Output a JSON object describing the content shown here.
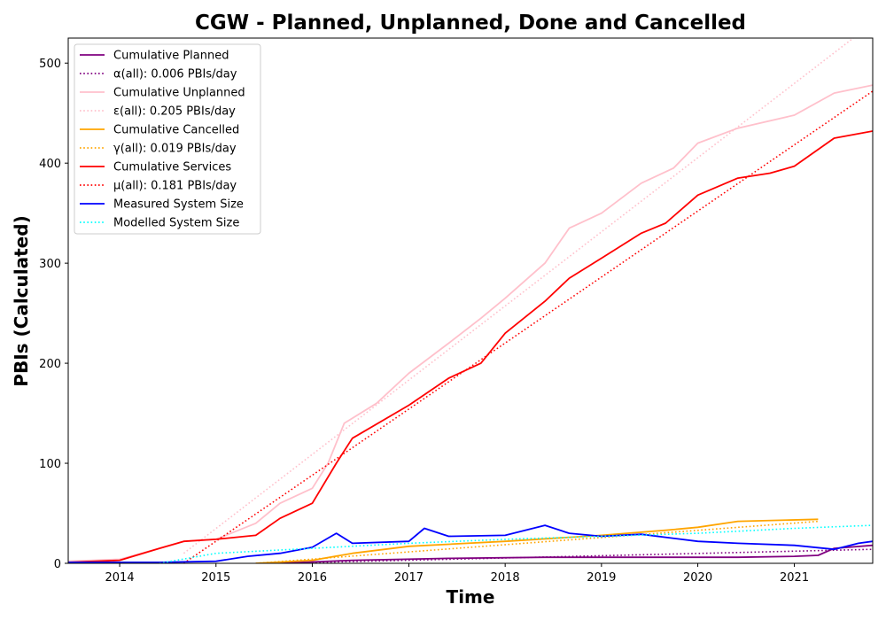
{
  "chart_data": {
    "type": "line",
    "title": "CGW - Planned, Unplanned, Done  and Cancelled",
    "xlabel": "Time",
    "ylabel": "PBIs (Calculated)",
    "xlim": [
      "2013-06-20",
      "2021-10-25"
    ],
    "ylim": [
      0,
      525
    ],
    "x_ticks": [
      "2014",
      "2015",
      "2016",
      "2017",
      "2018",
      "2019",
      "2020",
      "2021"
    ],
    "y_ticks": [
      0,
      100,
      200,
      300,
      400,
      500
    ],
    "legend_position": "upper-left",
    "grid": false,
    "series": [
      {
        "name": "Cumulative Planned",
        "color": "#800080",
        "style": "solid",
        "points": [
          [
            "2015-08-25",
            0
          ],
          [
            "2016-06-01",
            3
          ],
          [
            "2017-06-01",
            5
          ],
          [
            "2018-06-01",
            6
          ],
          [
            "2019-06-01",
            6
          ],
          [
            "2020-06-01",
            6
          ],
          [
            "2021-01-01",
            7
          ],
          [
            "2021-04-01",
            8
          ],
          [
            "2021-06-01",
            15
          ],
          [
            "2021-10-25",
            18
          ]
        ]
      },
      {
        "name": "α(all): 0.006 PBIs/day",
        "color": "#800080",
        "style": "dotted",
        "points": [
          [
            "2015-08-25",
            0
          ],
          [
            "2021-10-25",
            14
          ]
        ]
      },
      {
        "name": "Cumulative Unplanned",
        "color": "#ffc0cb",
        "style": "solid",
        "points": [
          [
            "2013-06-20",
            2
          ],
          [
            "2014-01-01",
            4
          ],
          [
            "2014-06-01",
            15
          ],
          [
            "2014-09-01",
            22
          ],
          [
            "2015-01-01",
            24
          ],
          [
            "2015-06-01",
            40
          ],
          [
            "2015-09-01",
            60
          ],
          [
            "2016-01-01",
            75
          ],
          [
            "2016-03-01",
            100
          ],
          [
            "2016-05-01",
            140
          ],
          [
            "2016-09-01",
            160
          ],
          [
            "2017-01-01",
            190
          ],
          [
            "2017-06-01",
            220
          ],
          [
            "2017-10-01",
            245
          ],
          [
            "2018-01-01",
            265
          ],
          [
            "2018-06-01",
            300
          ],
          [
            "2018-09-01",
            335
          ],
          [
            "2019-01-01",
            350
          ],
          [
            "2019-06-01",
            380
          ],
          [
            "2019-10-01",
            395
          ],
          [
            "2020-01-01",
            420
          ],
          [
            "2020-06-01",
            435
          ],
          [
            "2021-01-01",
            448
          ],
          [
            "2021-06-01",
            470
          ],
          [
            "2021-10-25",
            478
          ]
        ]
      },
      {
        "name": "ε(all): 0.205 PBIs/day",
        "color": "#ffc0cb",
        "style": "dotted",
        "points": [
          [
            "2014-09-01",
            10
          ],
          [
            "2021-10-25",
            540
          ]
        ]
      },
      {
        "name": "Cumulative Cancelled",
        "color": "#ffa500",
        "style": "solid",
        "points": [
          [
            "2015-06-01",
            0
          ],
          [
            "2016-01-01",
            3
          ],
          [
            "2016-06-01",
            10
          ],
          [
            "2017-01-01",
            17
          ],
          [
            "2018-01-01",
            22
          ],
          [
            "2019-01-01",
            28
          ],
          [
            "2019-09-01",
            33
          ],
          [
            "2020-01-01",
            36
          ],
          [
            "2020-06-01",
            42
          ],
          [
            "2021-04-01",
            44
          ]
        ]
      },
      {
        "name": "γ(all): 0.019 PBIs/day",
        "color": "#ffa500",
        "style": "dotted",
        "points": [
          [
            "2015-06-01",
            0
          ],
          [
            "2021-04-01",
            42
          ]
        ]
      },
      {
        "name": "Cumulative Services",
        "color": "#ff0000",
        "style": "solid",
        "points": [
          [
            "2013-06-20",
            1
          ],
          [
            "2014-01-01",
            3
          ],
          [
            "2014-06-01",
            15
          ],
          [
            "2014-09-01",
            22
          ],
          [
            "2015-01-01",
            24
          ],
          [
            "2015-06-01",
            28
          ],
          [
            "2015-09-01",
            45
          ],
          [
            "2016-01-01",
            60
          ],
          [
            "2016-04-01",
            100
          ],
          [
            "2016-06-01",
            125
          ],
          [
            "2017-01-01",
            158
          ],
          [
            "2017-06-01",
            185
          ],
          [
            "2017-10-01",
            200
          ],
          [
            "2018-01-01",
            230
          ],
          [
            "2018-06-01",
            262
          ],
          [
            "2018-09-01",
            285
          ],
          [
            "2019-01-01",
            305
          ],
          [
            "2019-06-01",
            330
          ],
          [
            "2019-09-01",
            340
          ],
          [
            "2020-01-01",
            368
          ],
          [
            "2020-06-01",
            385
          ],
          [
            "2020-10-01",
            390
          ],
          [
            "2021-01-01",
            397
          ],
          [
            "2021-06-01",
            425
          ],
          [
            "2021-10-25",
            432
          ]
        ]
      },
      {
        "name": "μ(all): 0.181 PBIs/day",
        "color": "#ff0000",
        "style": "dotted",
        "points": [
          [
            "2014-09-01",
            0
          ],
          [
            "2021-10-25",
            472
          ]
        ]
      },
      {
        "name": "Measured System Size",
        "color": "#0000ff",
        "style": "solid",
        "points": [
          [
            "2013-06-20",
            1
          ],
          [
            "2014-01-01",
            1
          ],
          [
            "2014-06-01",
            1
          ],
          [
            "2015-01-01",
            2
          ],
          [
            "2015-05-01",
            7
          ],
          [
            "2015-09-01",
            10
          ],
          [
            "2016-01-01",
            16
          ],
          [
            "2016-04-01",
            30
          ],
          [
            "2016-06-01",
            20
          ],
          [
            "2017-01-01",
            22
          ],
          [
            "2017-03-01",
            35
          ],
          [
            "2017-06-01",
            27
          ],
          [
            "2018-01-01",
            28
          ],
          [
            "2018-06-01",
            38
          ],
          [
            "2018-09-01",
            30
          ],
          [
            "2019-01-01",
            27
          ],
          [
            "2019-06-01",
            29
          ],
          [
            "2020-01-01",
            22
          ],
          [
            "2020-06-01",
            20
          ],
          [
            "2021-01-01",
            18
          ],
          [
            "2021-06-01",
            14
          ],
          [
            "2021-09-01",
            20
          ],
          [
            "2021-10-25",
            22
          ]
        ]
      },
      {
        "name": "Modelled System Size",
        "color": "#00ffff",
        "style": "dotted",
        "points": [
          [
            "2014-06-01",
            0
          ],
          [
            "2015-01-01",
            10
          ],
          [
            "2016-01-01",
            15
          ],
          [
            "2017-01-01",
            20
          ],
          [
            "2018-01-01",
            24
          ],
          [
            "2019-01-01",
            27
          ],
          [
            "2020-01-01",
            30
          ],
          [
            "2021-01-01",
            35
          ],
          [
            "2021-10-25",
            38
          ]
        ]
      }
    ]
  }
}
